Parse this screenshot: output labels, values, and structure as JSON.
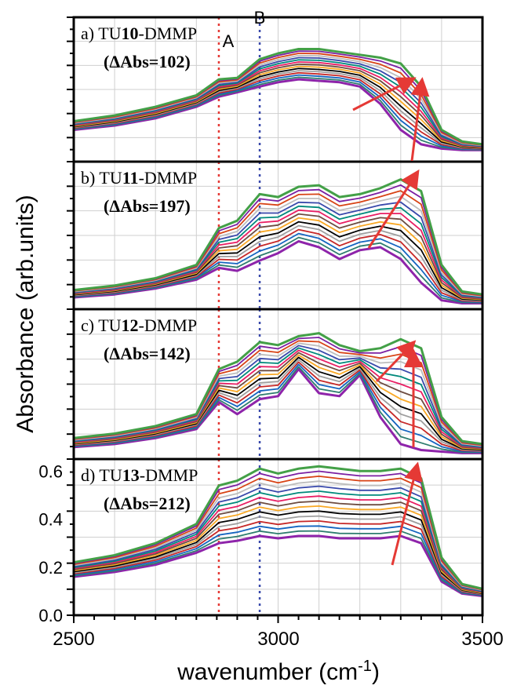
{
  "chart_data": {
    "type": "line",
    "xlabel": "wavenumber (cm",
    "xlabel_superscript": "-1",
    "xlabel_close": ")",
    "ylabel": "Absorbance (arb.units)",
    "xlim": [
      2500,
      3500
    ],
    "x_ticks": [
      "2500",
      "3000",
      "3500"
    ],
    "reference_lines": [
      {
        "label": "A",
        "x": 2855,
        "color": "#e53935"
      },
      {
        "label": "B",
        "x": 2955,
        "color": "#3949ab"
      }
    ],
    "panels": [
      {
        "label_prefix": "a) TU",
        "label_bold": "10",
        "label_suffix": "-DMMP",
        "delta_text": "(ΔAbs=102)",
        "ylim": [
          0,
          1
        ],
        "y_ticks_labeled": false,
        "series": [
          {
            "x": [
              2500,
              2600,
              2700,
              2800,
              2855,
              2900,
              2955,
              3000,
              3050,
              3100,
              3150,
              3200,
              3250,
              3300,
              3350,
              3400,
              3450,
              3500
            ],
            "y": [
              0.22,
              0.25,
              0.3,
              0.38,
              0.45,
              0.48,
              0.52,
              0.55,
              0.57,
              0.56,
              0.55,
              0.52,
              0.4,
              0.22,
              0.12,
              0.09,
              0.08,
              0.08
            ]
          },
          {
            "x": [
              2500,
              2600,
              2700,
              2800,
              2855,
              2900,
              2955,
              3000,
              3050,
              3100,
              3150,
              3200,
              3250,
              3300,
              3350,
              3400,
              3450,
              3500
            ],
            "y": [
              0.28,
              0.32,
              0.38,
              0.46,
              0.57,
              0.58,
              0.71,
              0.75,
              0.78,
              0.78,
              0.76,
              0.74,
              0.72,
              0.68,
              0.52,
              0.22,
              0.14,
              0.12
            ]
          }
        ]
      },
      {
        "label_prefix": "b) TU",
        "label_bold": "11",
        "label_suffix": "-DMMP",
        "delta_text": "(ΔAbs=197)",
        "ylim": [
          0,
          1
        ],
        "y_ticks_labeled": false,
        "series": [
          {
            "x": [
              2500,
              2600,
              2700,
              2800,
              2855,
              2900,
              2955,
              3000,
              3050,
              3100,
              3150,
              3200,
              3250,
              3300,
              3350,
              3400,
              3450,
              3500
            ],
            "y": [
              0.08,
              0.1,
              0.14,
              0.2,
              0.28,
              0.26,
              0.33,
              0.38,
              0.46,
              0.42,
              0.34,
              0.4,
              0.42,
              0.34,
              0.18,
              0.06,
              0.04,
              0.04
            ]
          },
          {
            "x": [
              2500,
              2600,
              2700,
              2800,
              2855,
              2900,
              2955,
              3000,
              3050,
              3100,
              3150,
              3200,
              3250,
              3300,
              3350,
              3400,
              3450,
              3500
            ],
            "y": [
              0.13,
              0.16,
              0.21,
              0.3,
              0.55,
              0.6,
              0.78,
              0.76,
              0.83,
              0.84,
              0.76,
              0.78,
              0.82,
              0.88,
              0.8,
              0.3,
              0.12,
              0.1
            ]
          }
        ]
      },
      {
        "label_prefix": "c) TU",
        "label_bold": "12",
        "label_suffix": "-DMMP",
        "delta_text": "(ΔAbs=142)",
        "ylim": [
          0,
          1
        ],
        "y_ticks_labeled": false,
        "series": [
          {
            "x": [
              2500,
              2600,
              2700,
              2800,
              2855,
              2900,
              2955,
              3000,
              3050,
              3100,
              3150,
              3200,
              3250,
              3300,
              3350,
              3400,
              3450,
              3500
            ],
            "y": [
              0.08,
              0.1,
              0.14,
              0.2,
              0.38,
              0.3,
              0.4,
              0.42,
              0.6,
              0.44,
              0.42,
              0.56,
              0.28,
              0.1,
              0.06,
              0.05,
              0.04,
              0.04
            ]
          },
          {
            "x": [
              2500,
              2600,
              2700,
              2800,
              2855,
              2900,
              2955,
              3000,
              3050,
              3100,
              3150,
              3200,
              3250,
              3300,
              3350,
              3400,
              3450,
              3500
            ],
            "y": [
              0.14,
              0.17,
              0.22,
              0.3,
              0.6,
              0.65,
              0.78,
              0.76,
              0.82,
              0.84,
              0.76,
              0.72,
              0.74,
              0.8,
              0.74,
              0.28,
              0.12,
              0.1
            ]
          }
        ]
      },
      {
        "label_prefix": "d) TU",
        "label_bold": "13",
        "label_suffix": "-DMMP",
        "delta_text": "(ΔAbs=212)",
        "ylim": [
          0,
          0.65
        ],
        "y_ticks": [
          0.0,
          0.2,
          0.4,
          0.6
        ],
        "y_tick_labels": [
          "0.0",
          "0.2",
          "0.4",
          "0.6"
        ],
        "y_ticks_labeled": true,
        "series": [
          {
            "x": [
              2500,
              2600,
              2700,
              2800,
              2855,
              2900,
              2955,
              3000,
              3050,
              3100,
              3150,
              3200,
              3250,
              3300,
              3350,
              3400,
              3450,
              3500
            ],
            "y": [
              0.16,
              0.18,
              0.21,
              0.26,
              0.3,
              0.31,
              0.33,
              0.32,
              0.33,
              0.33,
              0.32,
              0.32,
              0.32,
              0.33,
              0.3,
              0.14,
              0.09,
              0.08
            ]
          },
          {
            "x": [
              2500,
              2600,
              2700,
              2800,
              2855,
              2900,
              2955,
              3000,
              3050,
              3100,
              3150,
              3200,
              3250,
              3300,
              3350,
              3400,
              3450,
              3500
            ],
            "y": [
              0.22,
              0.25,
              0.3,
              0.38,
              0.54,
              0.56,
              0.61,
              0.59,
              0.61,
              0.62,
              0.61,
              0.6,
              0.6,
              0.61,
              0.57,
              0.24,
              0.13,
              0.11
            ]
          }
        ]
      }
    ]
  }
}
